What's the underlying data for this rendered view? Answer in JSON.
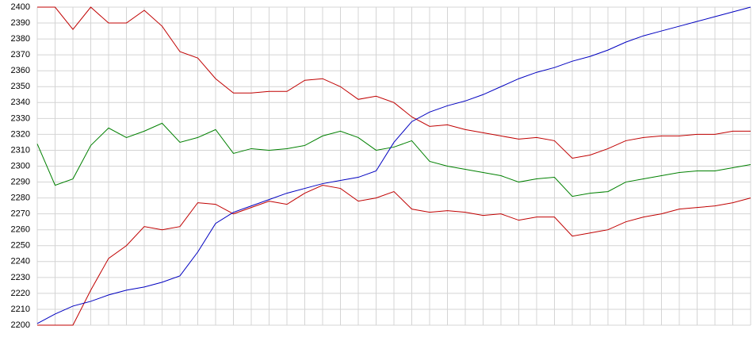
{
  "chart_data": {
    "type": "line",
    "categories": [
      null,
      null,
      null,
      null,
      null,
      null,
      null,
      null,
      null,
      null,
      null,
      null,
      null,
      null,
      null,
      null,
      null,
      null,
      null,
      null,
      null,
      null,
      null,
      null,
      null,
      null,
      null,
      null,
      null,
      null,
      null,
      null,
      null,
      null,
      null,
      null,
      null,
      null,
      null,
      null,
      null
    ],
    "series": [
      {
        "color": "#c00000",
        "values": [
          2400,
          2400,
          2386,
          2400,
          2390,
          2390,
          2398,
          2388,
          2372,
          2368,
          2355,
          2346,
          2346,
          2347,
          2347,
          2354,
          2355,
          2350,
          2342,
          2344,
          2340,
          2331,
          2325,
          2326,
          2323,
          2321,
          2319,
          2317,
          2318,
          2316,
          2305,
          2307,
          2311,
          2316,
          2318,
          2319,
          2319,
          2320,
          2320,
          2322,
          2322
        ]
      },
      {
        "color": "#008000",
        "values": [
          2314,
          2288,
          2292,
          2313,
          2324,
          2318,
          2322,
          2327,
          2315,
          2318,
          2323,
          2308,
          2311,
          2310,
          2311,
          2313,
          2319,
          2322,
          2318,
          2310,
          2312,
          2316,
          2303,
          2300,
          2298,
          2296,
          2294,
          2290,
          2292,
          2293,
          2281,
          2283,
          2284,
          2290,
          2292,
          2294,
          2296,
          2297,
          2297,
          2299,
          2301
        ]
      },
      {
        "color": "#c00000",
        "values": [
          2200,
          2200,
          2200,
          2222,
          2242,
          2250,
          2262,
          2260,
          2262,
          2277,
          2276,
          2270,
          2274,
          2278,
          2276,
          2283,
          2288,
          2286,
          2278,
          2280,
          2284,
          2273,
          2271,
          2272,
          2271,
          2269,
          2270,
          2266,
          2268,
          2268,
          2256,
          2258,
          2260,
          2265,
          2268,
          2270,
          2273,
          2274,
          2275,
          2277,
          2280
        ]
      },
      {
        "color": "#0000c0",
        "values": [
          2201,
          2207,
          2212,
          2215,
          2219,
          2222,
          2224,
          2227,
          2231,
          2246,
          2264,
          2271,
          2275,
          2279,
          2283,
          2286,
          2289,
          2291,
          2293,
          2297,
          2315,
          2328,
          2334,
          2338,
          2341,
          2345,
          2350,
          2355,
          2359,
          2362,
          2366,
          2369,
          2373,
          2378,
          2382,
          2385,
          2388,
          2391,
          2394,
          2397,
          2400
        ]
      }
    ],
    "ylim": [
      2200,
      2400
    ],
    "yticks": [
      2200,
      2210,
      2220,
      2230,
      2240,
      2250,
      2260,
      2270,
      2280,
      2290,
      2300,
      2310,
      2320,
      2330,
      2340,
      2350,
      2360,
      2370,
      2380,
      2390,
      2400
    ],
    "grid": true
  }
}
